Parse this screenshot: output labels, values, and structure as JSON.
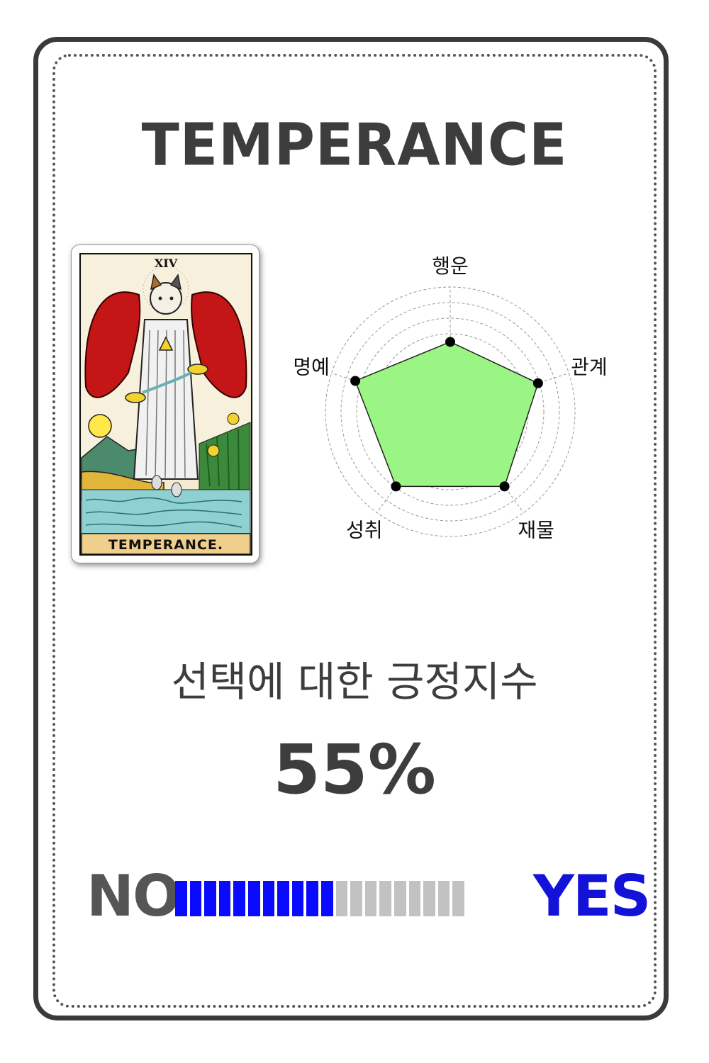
{
  "title": "TEMPERANCE",
  "card": {
    "numeral": "XIV",
    "name": "TEMPERANCE."
  },
  "radar": {
    "type": "radar",
    "axes": [
      "행운",
      "관계",
      "재물",
      "성취",
      "명예"
    ],
    "values": [
      0.56,
      0.74,
      0.74,
      0.74,
      0.8
    ],
    "fill_color": "#9bf585",
    "rings": 8
  },
  "subtitle": "선택에 대한 긍정지수",
  "score": {
    "percent_text": "55%",
    "value": 0.55,
    "segments_total": 20,
    "segments_on": 11,
    "no_label": "NO",
    "yes_label": "YES",
    "on_color": "#0a0aff",
    "off_color": "#c2c2c2"
  }
}
